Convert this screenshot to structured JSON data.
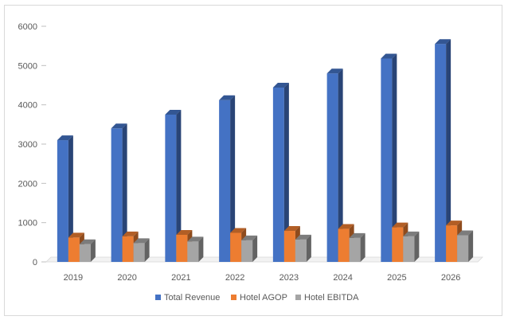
{
  "chart_data": {
    "type": "bar",
    "categories": [
      "2019",
      "2020",
      "2021",
      "2022",
      "2023",
      "2024",
      "2025",
      "2026"
    ],
    "series": [
      {
        "name": "Total Revenue",
        "color": "#4472C4",
        "values": [
          3100,
          3400,
          3750,
          4120,
          4440,
          4800,
          5180,
          5550
        ]
      },
      {
        "name": "Hotel AGOP",
        "color": "#ED7D31",
        "values": [
          620,
          650,
          690,
          740,
          790,
          840,
          880,
          930
        ]
      },
      {
        "name": "Hotel EBITDA",
        "color": "#A5A5A5",
        "values": [
          450,
          480,
          520,
          550,
          570,
          610,
          650,
          680
        ]
      }
    ],
    "ylim": [
      0,
      6000
    ],
    "yticks": [
      "0",
      "1000",
      "2000",
      "3000",
      "4000",
      "5000",
      "6000"
    ],
    "grid": false,
    "legend_position": "bottom",
    "style": "3d-clustered-column"
  }
}
